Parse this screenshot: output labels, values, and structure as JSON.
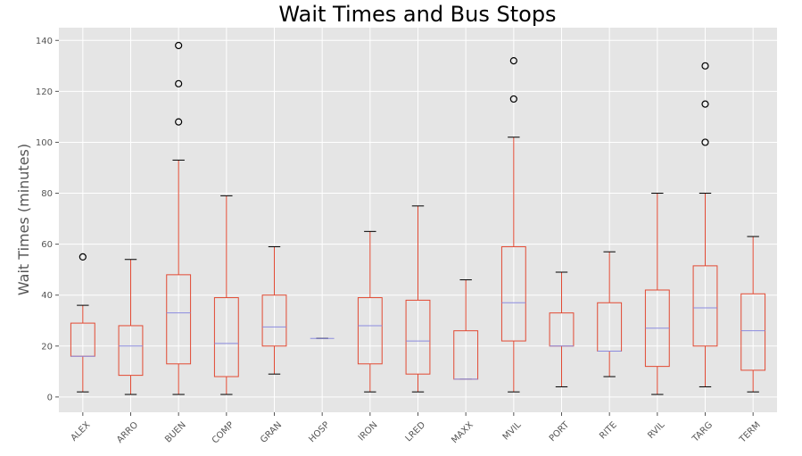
{
  "chart_data": {
    "type": "box",
    "title": "Wait Times and Bus Stops",
    "xlabel": "",
    "ylabel": "Wait Times (minutes)",
    "ylim": [
      -6,
      145
    ],
    "yticks": [
      0,
      20,
      40,
      60,
      80,
      100,
      120,
      140
    ],
    "grid": true,
    "colors": {
      "background": "#e5e5e5",
      "grid": "#ffffff",
      "box": "#e24a33",
      "median": "#8b8bde",
      "outlier": "#000000"
    },
    "categories": [
      "ALEX",
      "ARRO",
      "BUEN",
      "COMP",
      "GRAN",
      "HOSP",
      "IRON",
      "LRED",
      "MAXX",
      "MVIL",
      "PORT",
      "RITE",
      "RVIL",
      "TARG",
      "TERM"
    ],
    "boxes": [
      {
        "category": "ALEX",
        "whisker_low": 2,
        "q1": 16,
        "median": 16,
        "q3": 29,
        "whisker_high": 36,
        "outliers": [
          55
        ]
      },
      {
        "category": "ARRO",
        "whisker_low": 1,
        "q1": 8.5,
        "median": 20,
        "q3": 28,
        "whisker_high": 54,
        "outliers": []
      },
      {
        "category": "BUEN",
        "whisker_low": 1,
        "q1": 13,
        "median": 33,
        "q3": 48,
        "whisker_high": 93,
        "outliers": [
          108,
          123,
          138
        ]
      },
      {
        "category": "COMP",
        "whisker_low": 1,
        "q1": 8,
        "median": 21,
        "q3": 39,
        "whisker_high": 79,
        "outliers": []
      },
      {
        "category": "GRAN",
        "whisker_low": 9,
        "q1": 20,
        "median": 27.5,
        "q3": 40,
        "whisker_high": 59,
        "outliers": []
      },
      {
        "category": "HOSP",
        "whisker_low": 23,
        "q1": 23,
        "median": 23,
        "q3": 23,
        "whisker_high": 23,
        "outliers": []
      },
      {
        "category": "IRON",
        "whisker_low": 2,
        "q1": 13,
        "median": 28,
        "q3": 39,
        "whisker_high": 65,
        "outliers": []
      },
      {
        "category": "LRED",
        "whisker_low": 2,
        "q1": 9,
        "median": 22,
        "q3": 38,
        "whisker_high": 75,
        "outliers": []
      },
      {
        "category": "MAXX",
        "whisker_low": 7,
        "q1": 7,
        "median": 7,
        "q3": 26,
        "whisker_high": 46,
        "outliers": []
      },
      {
        "category": "MVIL",
        "whisker_low": 2,
        "q1": 22,
        "median": 37,
        "q3": 59,
        "whisker_high": 102,
        "outliers": [
          117,
          132
        ]
      },
      {
        "category": "PORT",
        "whisker_low": 4,
        "q1": 20,
        "median": 20,
        "q3": 33,
        "whisker_high": 49,
        "outliers": []
      },
      {
        "category": "RITE",
        "whisker_low": 8,
        "q1": 18,
        "median": 18,
        "q3": 37,
        "whisker_high": 57,
        "outliers": []
      },
      {
        "category": "RVIL",
        "whisker_low": 1,
        "q1": 12,
        "median": 27,
        "q3": 42,
        "whisker_high": 80,
        "outliers": []
      },
      {
        "category": "TARG",
        "whisker_low": 4,
        "q1": 20,
        "median": 35,
        "q3": 51.5,
        "whisker_high": 80,
        "outliers": [
          100,
          115,
          130
        ]
      },
      {
        "category": "TERM",
        "whisker_low": 2,
        "q1": 10.5,
        "median": 26,
        "q3": 40.5,
        "whisker_high": 63,
        "outliers": []
      }
    ]
  }
}
